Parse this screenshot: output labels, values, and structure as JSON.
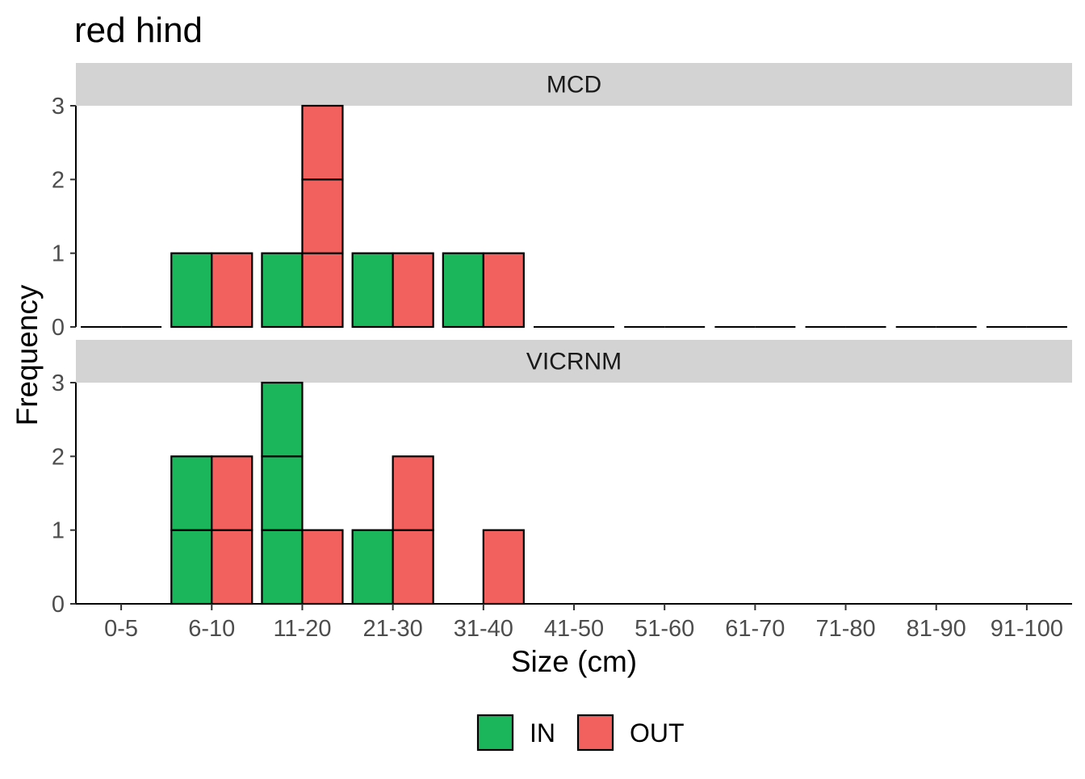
{
  "chart_data": {
    "type": "bar",
    "title": "red hind",
    "xlabel": "Size (cm)",
    "ylabel": "Frequency",
    "categories": [
      "0-5",
      "6-10",
      "11-20",
      "21-30",
      "31-40",
      "41-50",
      "51-60",
      "61-70",
      "71-80",
      "81-90",
      "91-100"
    ],
    "ylim": [
      0,
      3
    ],
    "yticks": [
      0,
      1,
      2,
      3
    ],
    "grid": false,
    "legend_position": "bottom",
    "stacked": "each bar drawn as stacked unit count boxes, dodged by group",
    "facets": [
      {
        "label": "MCD",
        "series": [
          {
            "name": "IN",
            "color": "#1bb55c",
            "values": [
              0,
              1,
              1,
              1,
              1,
              0,
              0,
              0,
              0,
              0,
              0
            ]
          },
          {
            "name": "OUT",
            "color": "#f2615e",
            "values": [
              0,
              1,
              3,
              1,
              1,
              0,
              0,
              0,
              0,
              0,
              0
            ]
          }
        ]
      },
      {
        "label": "VICRNM",
        "series": [
          {
            "name": "IN",
            "color": "#1bb55c",
            "values": [
              0,
              2,
              3,
              1,
              0,
              0,
              0,
              0,
              0,
              0,
              0
            ]
          },
          {
            "name": "OUT",
            "color": "#f2615e",
            "values": [
              0,
              2,
              1,
              2,
              1,
              0,
              0,
              0,
              0,
              0,
              0
            ]
          }
        ]
      }
    ],
    "legend": [
      {
        "name": "IN",
        "color": "#1bb55c"
      },
      {
        "name": "OUT",
        "color": "#f2615e"
      }
    ],
    "strip_color": "#d3d3d3"
  }
}
